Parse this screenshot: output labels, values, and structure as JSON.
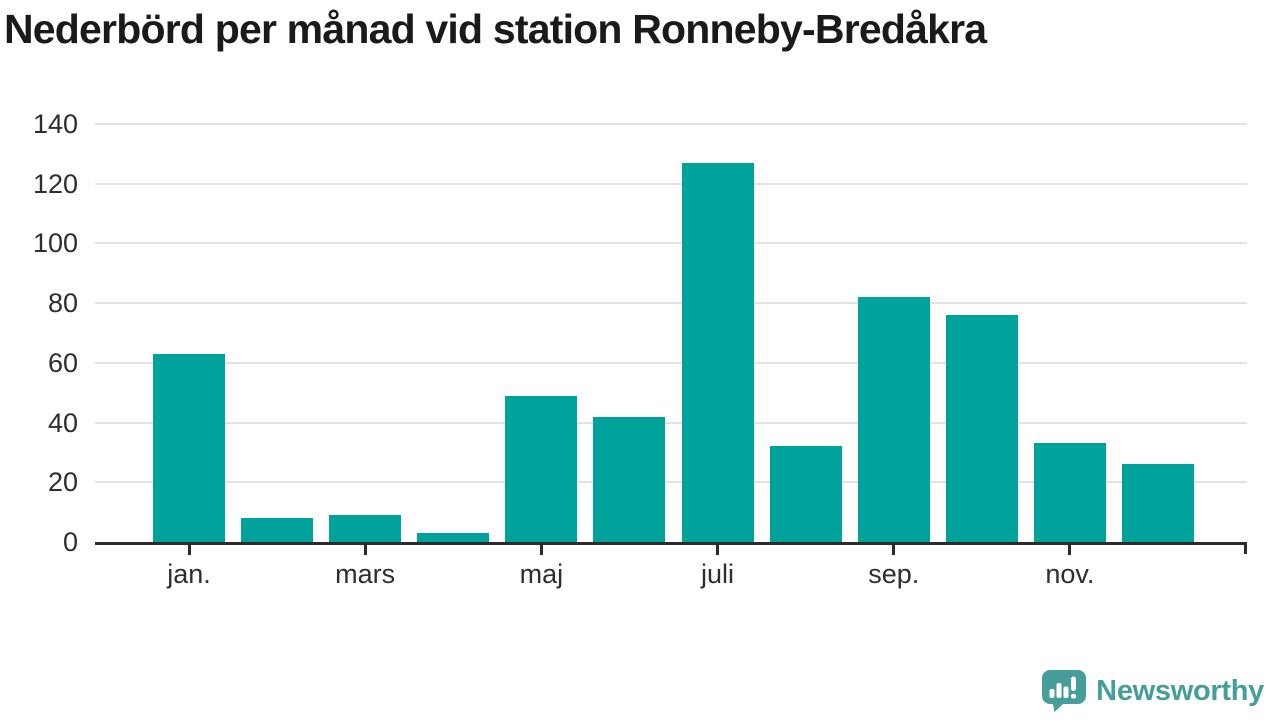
{
  "title": "Nederbörd per månad vid station Ronneby-Bredåkra",
  "chart_data": {
    "type": "bar",
    "title": "Nederbörd per månad vid station Ronneby-Bredåkra",
    "values": [
      63,
      8,
      9,
      3,
      49,
      42,
      127,
      32,
      82,
      76,
      33,
      26
    ],
    "x_tick_labels": [
      "jan.",
      "mars",
      "maj",
      "juli",
      "sep.",
      "nov."
    ],
    "x_tick_every": 2,
    "y_ticks": [
      0,
      20,
      40,
      60,
      80,
      100,
      120,
      140
    ],
    "ylim": [
      0,
      140
    ],
    "xlabel": "",
    "ylabel": "",
    "grid": true,
    "legend_position": "none",
    "bar_color": "#00a39b",
    "axis_color": "#2b2b2b",
    "gridline_color": "#e3e3e3",
    "tick_label_color": "#2e2e2e"
  },
  "branding": {
    "logo_text": "Newsworthy",
    "logo_color": "#459e99",
    "logo_icon": "bar-chart-speech-bubble-icon"
  }
}
